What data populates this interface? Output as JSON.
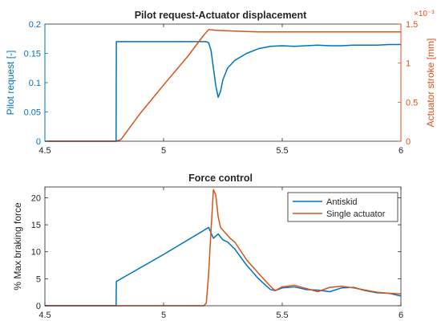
{
  "colors": {
    "blue": "#0072BD",
    "orange": "#D95319",
    "axis": "#262626",
    "grid": "#E6E6E6",
    "background": "#FFFFFF"
  },
  "chart_data": [
    {
      "type": "line",
      "title": "Pilot request-Actuator displacement",
      "xlabel": "",
      "xlim": [
        4.5,
        6
      ],
      "x_ticks": [
        "4.5",
        "5",
        "5.5",
        "6"
      ],
      "grid": false,
      "left_axis": {
        "label": "Pilot request [-]",
        "ylim": [
          0,
          0.2
        ],
        "ticks": [
          "0",
          "0.05",
          "0.1",
          "0.15",
          "0.2"
        ]
      },
      "right_axis": {
        "label": "Actuator stroke [mm]",
        "ylim": [
          0,
          1.5
        ],
        "ticks": [
          "0",
          "0.5",
          "1",
          "1.5"
        ],
        "exponent": "×10⁻³"
      },
      "series": [
        {
          "axis": "left",
          "color": "#0072BD",
          "x": [
            4.5,
            4.79,
            4.8,
            4.801,
            4.9,
            5.0,
            5.1,
            5.18,
            5.19,
            5.2,
            5.21,
            5.22,
            5.23,
            5.24,
            5.25,
            5.27,
            5.3,
            5.35,
            5.4,
            5.45,
            5.5,
            5.55,
            5.6,
            5.65,
            5.7,
            5.75,
            5.8,
            5.85,
            5.9,
            5.95,
            6.0
          ],
          "y": [
            0,
            0,
            0,
            0.17,
            0.17,
            0.17,
            0.17,
            0.17,
            0.168,
            0.155,
            0.125,
            0.095,
            0.075,
            0.085,
            0.105,
            0.125,
            0.138,
            0.15,
            0.158,
            0.162,
            0.163,
            0.162,
            0.163,
            0.164,
            0.163,
            0.163,
            0.164,
            0.164,
            0.164,
            0.165,
            0.165
          ]
        },
        {
          "axis": "right",
          "color": "#D95319",
          "x": [
            4.5,
            4.8,
            4.82,
            4.9,
            5.0,
            5.1,
            5.17,
            5.19,
            5.22,
            5.3,
            5.4,
            5.5,
            5.6,
            5.7,
            5.8,
            5.9,
            6.0
          ],
          "y": [
            0,
            0,
            0.02,
            0.35,
            0.72,
            1.08,
            1.36,
            1.43,
            1.42,
            1.41,
            1.4,
            1.4,
            1.4,
            1.4,
            1.4,
            1.4,
            1.4
          ]
        }
      ]
    },
    {
      "type": "line",
      "title": "Force control",
      "xlabel": "",
      "ylabel": "% Max braking force",
      "xlim": [
        4.5,
        6
      ],
      "ylim": [
        0,
        22
      ],
      "x_ticks": [
        "4.5",
        "5",
        "5.5",
        "6"
      ],
      "y_ticks": [
        "0",
        "5",
        "10",
        "15",
        "20"
      ],
      "grid": false,
      "legend": "top-right",
      "series": [
        {
          "name": "Antiskid",
          "color": "#0072BD",
          "x": [
            4.5,
            4.8,
            4.801,
            5.0,
            5.19,
            5.21,
            5.23,
            5.25,
            5.27,
            5.3,
            5.35,
            5.4,
            5.45,
            5.47,
            5.5,
            5.55,
            5.6,
            5.65,
            5.7,
            5.75,
            5.8,
            5.85,
            5.9,
            5.95,
            6.0
          ],
          "y": [
            0,
            0,
            4.5,
            9.5,
            14.5,
            12.5,
            13.3,
            12.2,
            11.8,
            10.5,
            7.5,
            5.0,
            3.0,
            2.8,
            3.3,
            3.5,
            3.0,
            2.9,
            2.6,
            3.3,
            3.4,
            2.8,
            2.4,
            2.3,
            1.8
          ]
        },
        {
          "name": "Single actuator",
          "color": "#D95319",
          "x": [
            4.5,
            5.17,
            5.18,
            5.19,
            5.2,
            5.21,
            5.22,
            5.23,
            5.24,
            5.26,
            5.28,
            5.3,
            5.35,
            5.4,
            5.45,
            5.47,
            5.5,
            5.55,
            5.6,
            5.65,
            5.7,
            5.75,
            5.8,
            5.85,
            5.9,
            5.95,
            6.0
          ],
          "y": [
            0,
            0,
            0.5,
            6.0,
            14.0,
            21.5,
            20.5,
            16.5,
            14.5,
            13.5,
            12.5,
            11.8,
            8.5,
            6.0,
            3.6,
            2.8,
            3.5,
            3.8,
            3.2,
            2.6,
            3.4,
            3.6,
            3.3,
            2.9,
            2.5,
            2.3,
            2.2
          ]
        }
      ]
    }
  ]
}
